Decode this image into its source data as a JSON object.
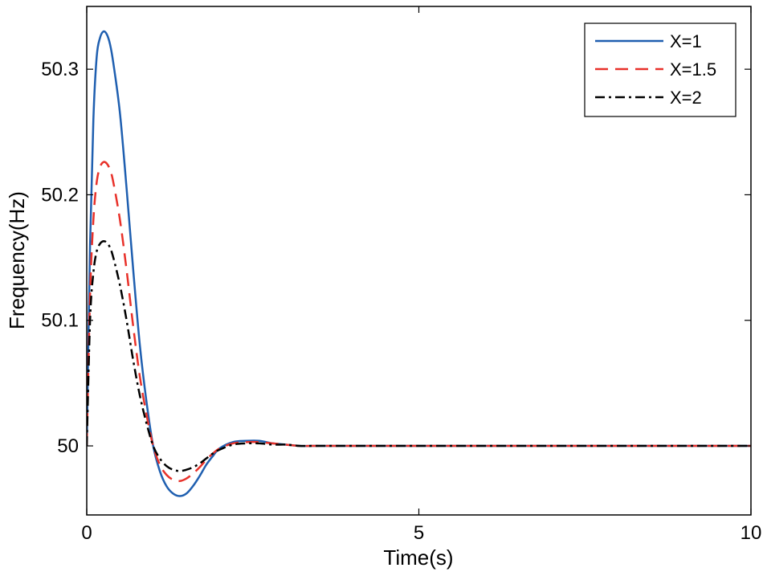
{
  "chart_data": {
    "type": "line",
    "title": "",
    "xlabel": "Time(s)",
    "ylabel": "Frequency(Hz)",
    "xlim": [
      0,
      10
    ],
    "ylim": [
      49.945,
      50.35
    ],
    "xticks": [
      0,
      5,
      10
    ],
    "xtick_labels": [
      "0",
      "5",
      "10"
    ],
    "yticks": [
      50,
      50.1,
      50.2,
      50.3
    ],
    "ytick_labels": [
      "50",
      "50.1",
      "50.2",
      "50.3"
    ],
    "grid": false,
    "legend_position": "top-right",
    "series": [
      {
        "name": "X=1",
        "color": "#1f5fb0",
        "style": "solid",
        "x": [
          0,
          0.05,
          0.1,
          0.15,
          0.2,
          0.25,
          0.3,
          0.35,
          0.4,
          0.5,
          0.6,
          0.7,
          0.8,
          0.9,
          1.0,
          1.1,
          1.2,
          1.3,
          1.4,
          1.5,
          1.6,
          1.7,
          1.8,
          1.9,
          2.0,
          2.2,
          2.4,
          2.6,
          2.8,
          3.0,
          3.2,
          3.4,
          3.7,
          4.0,
          5.0,
          6.0,
          7.0,
          8.0,
          9.0,
          10.0
        ],
        "y": [
          50.0,
          50.16,
          50.26,
          50.31,
          50.325,
          50.33,
          50.328,
          50.32,
          50.305,
          50.265,
          50.205,
          50.14,
          50.08,
          50.035,
          50.0,
          49.98,
          49.968,
          49.962,
          49.96,
          49.962,
          49.968,
          49.976,
          49.985,
          49.992,
          49.998,
          50.003,
          50.004,
          50.004,
          50.002,
          50.001,
          50.0,
          50.0,
          50.0,
          50.0,
          50.0,
          50.0,
          50.0,
          50.0,
          50.0,
          50.0
        ]
      },
      {
        "name": "X=1.5",
        "color": "#e8312a",
        "style": "dashed",
        "x": [
          0,
          0.05,
          0.1,
          0.15,
          0.2,
          0.25,
          0.3,
          0.35,
          0.4,
          0.5,
          0.6,
          0.7,
          0.8,
          0.9,
          1.0,
          1.1,
          1.2,
          1.3,
          1.4,
          1.5,
          1.6,
          1.7,
          1.8,
          1.9,
          2.0,
          2.2,
          2.4,
          2.6,
          2.8,
          3.0,
          3.2,
          3.4,
          3.7,
          4.0,
          5.0,
          6.0,
          7.0,
          8.0,
          9.0,
          10.0
        ],
        "y": [
          50.0,
          50.12,
          50.18,
          50.21,
          50.222,
          50.226,
          50.225,
          50.22,
          50.21,
          50.18,
          50.14,
          50.095,
          50.055,
          50.025,
          50.0,
          49.985,
          49.977,
          49.973,
          49.972,
          49.974,
          49.978,
          49.983,
          49.989,
          49.994,
          49.998,
          50.002,
          50.003,
          50.003,
          50.002,
          50.001,
          50.0,
          50.0,
          50.0,
          50.0,
          50.0,
          50.0,
          50.0,
          50.0,
          50.0,
          50.0
        ]
      },
      {
        "name": "X=2",
        "color": "#000000",
        "style": "dashdot",
        "x": [
          0,
          0.05,
          0.1,
          0.15,
          0.2,
          0.25,
          0.3,
          0.35,
          0.4,
          0.5,
          0.6,
          0.7,
          0.8,
          0.9,
          1.0,
          1.1,
          1.2,
          1.3,
          1.4,
          1.5,
          1.6,
          1.7,
          1.8,
          1.9,
          2.0,
          2.2,
          2.4,
          2.6,
          2.8,
          3.0,
          3.2,
          3.4,
          3.7,
          4.0,
          5.0,
          6.0,
          7.0,
          8.0,
          9.0,
          10.0
        ],
        "y": [
          50.0,
          50.1,
          50.138,
          50.155,
          50.161,
          50.163,
          50.162,
          50.158,
          50.15,
          50.128,
          50.1,
          50.068,
          50.04,
          50.018,
          50.0,
          49.99,
          49.984,
          49.981,
          49.98,
          49.981,
          49.983,
          49.986,
          49.99,
          49.994,
          49.997,
          50.001,
          50.002,
          50.002,
          50.001,
          50.001,
          50.0,
          50.0,
          50.0,
          50.0,
          50.0,
          50.0,
          50.0,
          50.0,
          50.0,
          50.0
        ]
      }
    ]
  }
}
